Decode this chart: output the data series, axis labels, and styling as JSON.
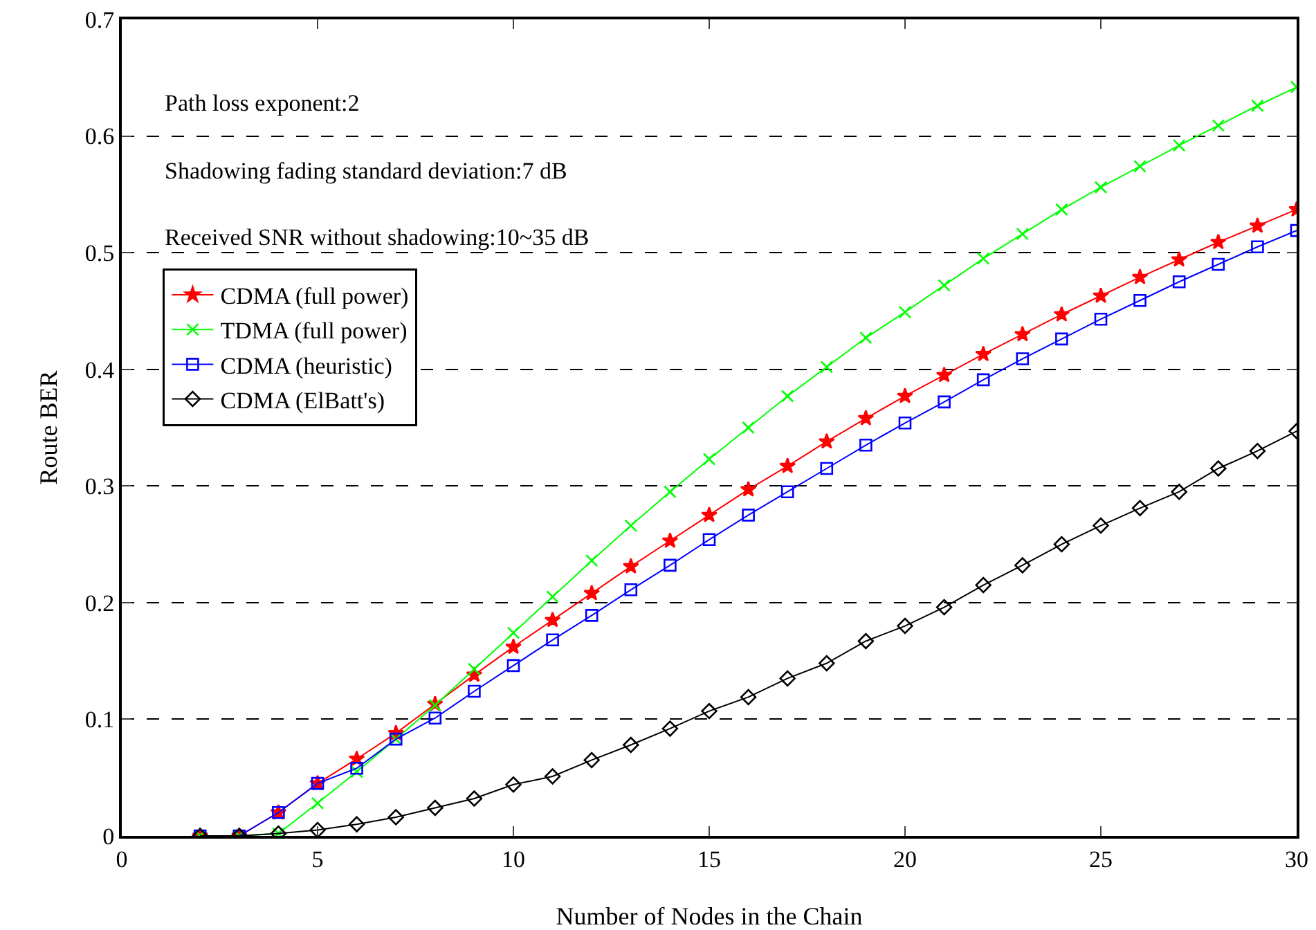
{
  "chart_data": {
    "type": "line",
    "xlabel": "Number of Nodes in the Chain",
    "ylabel": "Route BER",
    "x": [
      2,
      3,
      4,
      5,
      6,
      7,
      8,
      9,
      10,
      11,
      12,
      13,
      14,
      15,
      16,
      17,
      18,
      19,
      20,
      21,
      22,
      23,
      24,
      25,
      26,
      27,
      28,
      29,
      30
    ],
    "xlim": [
      0,
      30
    ],
    "xticks": [
      0,
      5,
      10,
      15,
      20,
      25,
      30
    ],
    "ylim": [
      0,
      0.7
    ],
    "yticks": [
      0,
      0.1,
      0.2,
      0.3,
      0.4,
      0.5,
      0.6,
      0.7
    ],
    "grid": "y",
    "line_style": "solid",
    "legend": "top left",
    "annotations": [
      "Path loss exponent:2",
      "Shadowing fading standard deviation:7 dB",
      "Received SNR without shadowing:10~35 dB"
    ],
    "series": [
      {
        "name": "CDMA (full power)",
        "color": "#ff0000",
        "marker": "star",
        "values": [
          0,
          0,
          0.02,
          0.045,
          0.066,
          0.088,
          0.113,
          0.138,
          0.162,
          0.185,
          0.208,
          0.231,
          0.253,
          0.275,
          0.297,
          0.317,
          0.338,
          0.358,
          0.377,
          0.395,
          0.413,
          0.43,
          0.447,
          0.463,
          0.479,
          0.494,
          0.509,
          0.523,
          0.537
        ]
      },
      {
        "name": "TDMA (full power)",
        "color": "#00ff00",
        "marker": "cross",
        "values": [
          0,
          0,
          0.002,
          0.028,
          0.055,
          0.083,
          0.112,
          0.143,
          0.174,
          0.205,
          0.236,
          0.266,
          0.295,
          0.323,
          0.35,
          0.377,
          0.402,
          0.427,
          0.449,
          0.472,
          0.495,
          0.516,
          0.537,
          0.556,
          0.574,
          0.592,
          0.609,
          0.626,
          0.642
        ]
      },
      {
        "name": "CDMA (heuristic)",
        "color": "#0000ff",
        "marker": "square",
        "values": [
          0,
          0,
          0.02,
          0.045,
          0.058,
          0.083,
          0.101,
          0.124,
          0.146,
          0.168,
          0.189,
          0.211,
          0.232,
          0.254,
          0.275,
          0.295,
          0.315,
          0.335,
          0.354,
          0.372,
          0.391,
          0.409,
          0.426,
          0.443,
          0.459,
          0.475,
          0.49,
          0.505,
          0.519
        ]
      },
      {
        "name": "CDMA (ElBatt's)",
        "color": "#000000",
        "marker": "diamond",
        "values": [
          0,
          0,
          0.002,
          0.005,
          0.01,
          0.016,
          0.024,
          0.032,
          0.044,
          0.051,
          0.065,
          0.078,
          0.092,
          0.107,
          0.119,
          0.135,
          0.148,
          0.167,
          0.18,
          0.196,
          0.215,
          0.232,
          0.25,
          0.266,
          0.281,
          0.295,
          0.315,
          0.33,
          0.347
        ]
      }
    ]
  }
}
